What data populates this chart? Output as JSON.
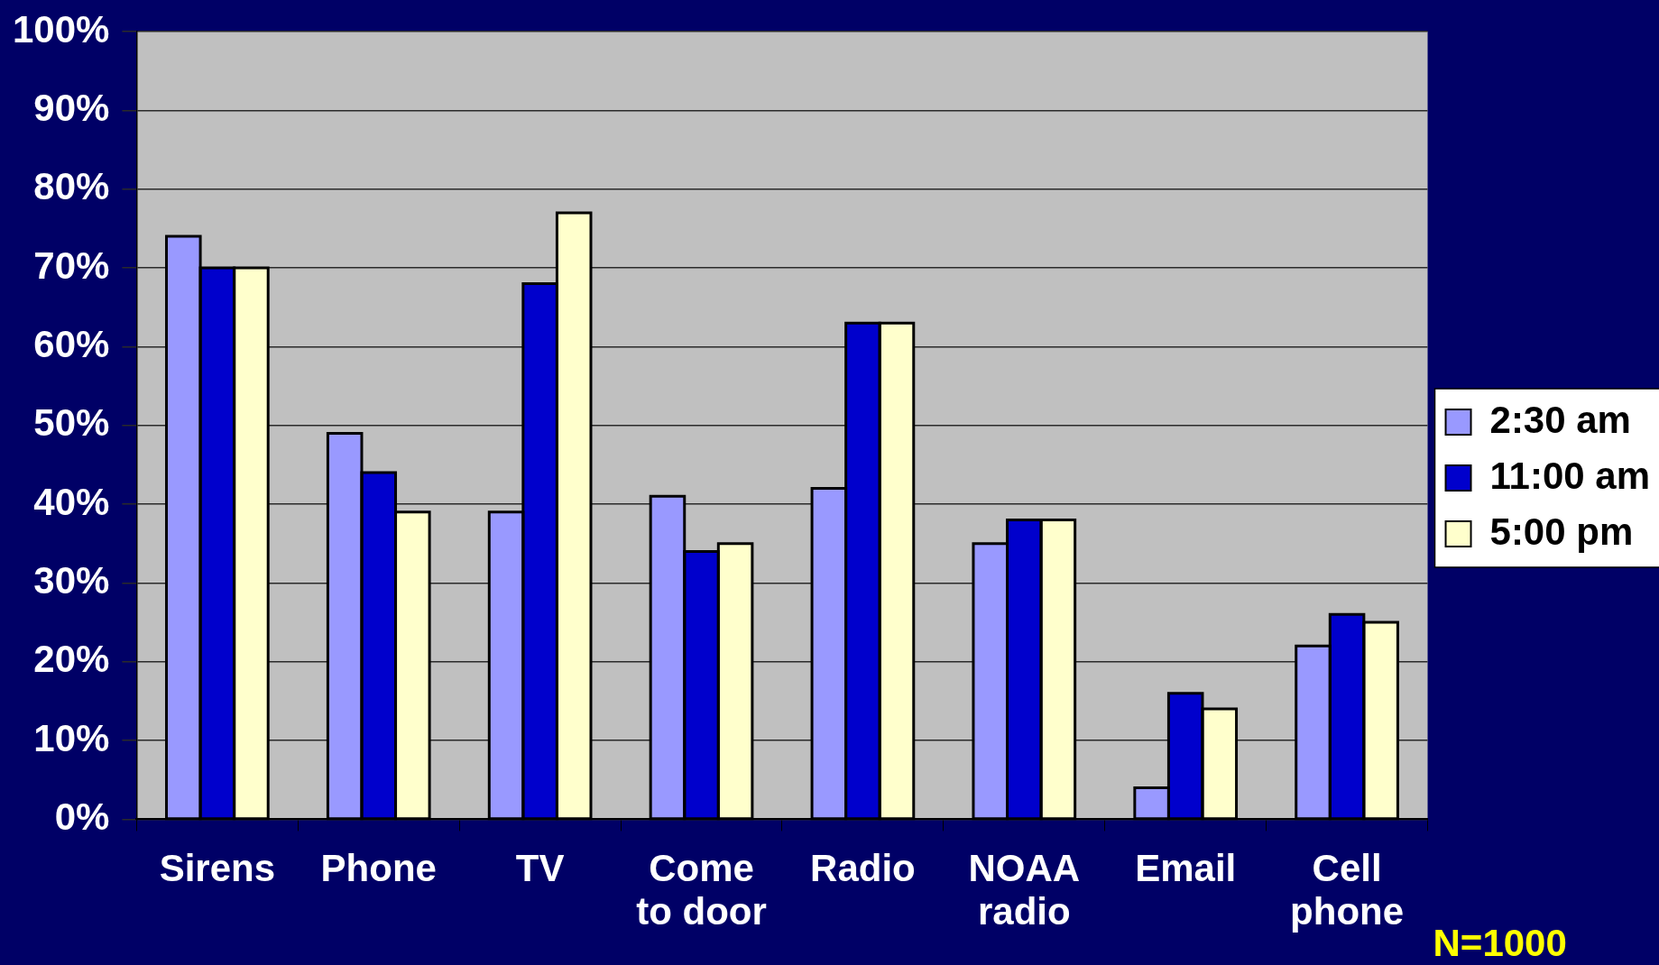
{
  "chart_data": {
    "type": "bar",
    "categories": [
      "Sirens",
      "Phone",
      "TV",
      "Come to door",
      "Radio",
      "NOAA radio",
      "Email",
      "Cell phone"
    ],
    "series": [
      {
        "name": "2:30 am",
        "color": "#9999ff",
        "values": [
          74,
          49,
          39,
          41,
          42,
          35,
          4,
          22
        ]
      },
      {
        "name": "11:00 am",
        "color": "#0000cc",
        "values": [
          70,
          44,
          68,
          34,
          63,
          38,
          16,
          26
        ]
      },
      {
        "name": "5:00 pm",
        "color": "#ffffcc",
        "values": [
          70,
          39,
          77,
          35,
          63,
          38,
          14,
          25
        ]
      }
    ],
    "ylim": [
      0,
      100
    ],
    "yticks": [
      {
        "value": 0,
        "label": "0%"
      },
      {
        "value": 10,
        "label": "10%"
      },
      {
        "value": 20,
        "label": "20%"
      },
      {
        "value": 30,
        "label": "30%"
      },
      {
        "value": 40,
        "label": "40%"
      },
      {
        "value": 50,
        "label": "50%"
      },
      {
        "value": 60,
        "label": "60%"
      },
      {
        "value": 70,
        "label": "70%"
      },
      {
        "value": 80,
        "label": "80%"
      },
      {
        "value": 90,
        "label": "90%"
      },
      {
        "value": 100,
        "label": "100%"
      }
    ],
    "grid": "y",
    "legend": "right",
    "annotations": [
      "N=1000"
    ]
  }
}
